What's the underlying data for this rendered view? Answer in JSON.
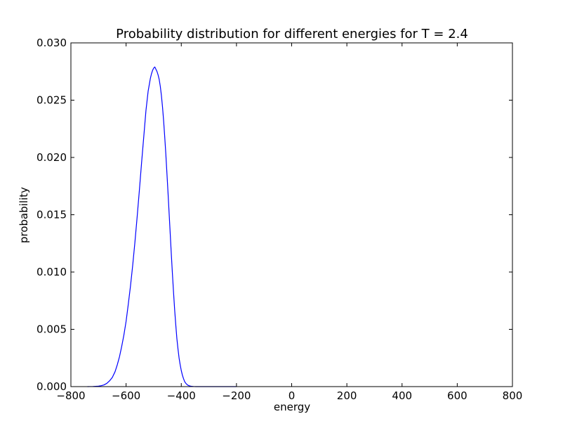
{
  "chart_data": {
    "type": "line",
    "title": "Probability distribution for different energies for T = 2.4",
    "xlabel": "energy",
    "ylabel": "probability",
    "xlim": [
      -800,
      800
    ],
    "ylim": [
      0,
      0.03
    ],
    "xticks": [
      -800,
      -600,
      -400,
      -200,
      0,
      200,
      400,
      600,
      800
    ],
    "xtick_labels": [
      "−800",
      "−600",
      "−400",
      "−200",
      "0",
      "200",
      "400",
      "600",
      "800"
    ],
    "yticks": [
      0,
      0.005,
      0.01,
      0.015,
      0.02,
      0.025,
      0.03
    ],
    "ytick_labels": [
      "0.000",
      "0.005",
      "0.010",
      "0.015",
      "0.020",
      "0.025",
      "0.030"
    ],
    "grid": false,
    "legend": "none",
    "line_color": "#0000ff",
    "series": [
      {
        "x": [
          -740,
          -720,
          -700,
          -690,
          -680,
          -670,
          -660,
          -650,
          -640,
          -632,
          -624,
          -616,
          -608,
          -600,
          -592,
          -584,
          -576,
          -568,
          -560,
          -552,
          -544,
          -536,
          -528,
          -520,
          -512,
          -508,
          -504,
          -500,
          -496,
          -492,
          -488,
          -484,
          -480,
          -476,
          -472,
          -468,
          -464,
          -460,
          -456,
          -452,
          -448,
          -444,
          -440,
          -436,
          -432,
          -428,
          -424,
          -420,
          -416,
          -412,
          -408,
          -404,
          -400,
          -396,
          -392,
          -388,
          -384,
          -380,
          -376,
          -372,
          -368,
          -364,
          -360,
          -356,
          -352,
          -348,
          -344,
          -340,
          -336,
          -332,
          -328,
          -320,
          -312,
          -304,
          -296,
          -280,
          -250,
          -200
        ],
        "y": [
          0.0,
          1e-05,
          4e-05,
          8e-05,
          0.00015,
          0.00028,
          0.0005,
          0.0008,
          0.0013,
          0.0019,
          0.0026,
          0.0035,
          0.0045,
          0.0057,
          0.0072,
          0.0088,
          0.0106,
          0.0126,
          0.0148,
          0.0171,
          0.0195,
          0.0218,
          0.0241,
          0.0258,
          0.0269,
          0.0273,
          0.0276,
          0.0278,
          0.0279,
          0.0277,
          0.0275,
          0.0272,
          0.0268,
          0.0262,
          0.0254,
          0.0244,
          0.0232,
          0.0218,
          0.0203,
          0.0186,
          0.0169,
          0.0151,
          0.0133,
          0.0115,
          0.0098,
          0.0082,
          0.0067,
          0.0054,
          0.0042,
          0.0033,
          0.0025,
          0.0019,
          0.0014,
          0.001,
          0.0007,
          0.00045,
          0.0003,
          0.0002,
          0.00012,
          8e-05,
          5e-05,
          3e-05,
          2e-05,
          1e-05,
          5e-06,
          0.0,
          0.0,
          0.0,
          0.0,
          0.0,
          0.0,
          0.0,
          0.0,
          0.0,
          0.0,
          0.0,
          0.0,
          0.0
        ]
      }
    ]
  }
}
